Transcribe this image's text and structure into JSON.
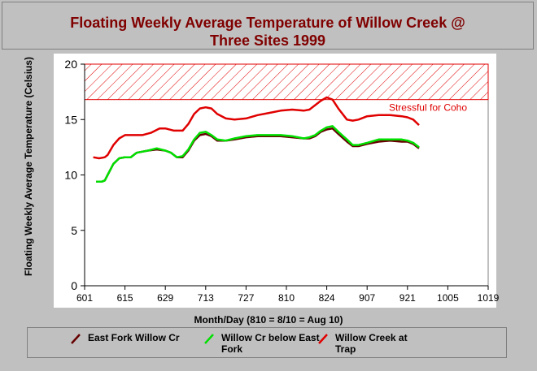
{
  "title_line1": "Floating Weekly Average Temperature of Willow Creek @",
  "title_line2": "Three Sites 1999",
  "colors": {
    "series1": "#660000",
    "series2": "#00e000",
    "series3": "#e00000",
    "hatch": "#e00000",
    "title": "#800000"
  },
  "chart_data": {
    "type": "line",
    "title": "Floating Weekly Average Temperature of Willow Creek @ Three Sites 1999",
    "xlabel": "Month/Day (810 = 8/10 = Aug 10)",
    "ylabel": "Floating Weekly Average Temperature (Celsius)",
    "x_ticks": [
      "601",
      "615",
      "629",
      "713",
      "727",
      "810",
      "824",
      "907",
      "921",
      "1005",
      "1019"
    ],
    "xlim": [
      "06-01",
      "10-19"
    ],
    "ylim": [
      0,
      20
    ],
    "y_ticks": [
      0,
      5,
      10,
      15,
      20
    ],
    "grid": false,
    "threshold": {
      "label": "Stressful for Coho",
      "from": 16.8,
      "to": 20
    },
    "series": [
      {
        "name": "East Fork Willow Cr",
        "color": "#660000",
        "points": [
          [
            "06-05",
            9.4
          ],
          [
            "06-07",
            9.4
          ],
          [
            "06-08",
            9.5
          ],
          [
            "06-09",
            10.0
          ],
          [
            "06-11",
            11.0
          ],
          [
            "06-13",
            11.5
          ],
          [
            "06-15",
            11.6
          ],
          [
            "06-17",
            11.6
          ],
          [
            "06-19",
            12.0
          ],
          [
            "06-21",
            12.1
          ],
          [
            "06-23",
            12.2
          ],
          [
            "06-26",
            12.3
          ],
          [
            "06-29",
            12.2
          ],
          [
            "07-01",
            12.0
          ],
          [
            "07-03",
            11.6
          ],
          [
            "07-05",
            11.6
          ],
          [
            "07-07",
            12.2
          ],
          [
            "07-09",
            13.1
          ],
          [
            "07-11",
            13.6
          ],
          [
            "07-13",
            13.7
          ],
          [
            "07-15",
            13.5
          ],
          [
            "07-17",
            13.1
          ],
          [
            "07-20",
            13.1
          ],
          [
            "07-23",
            13.2
          ],
          [
            "07-27",
            13.4
          ],
          [
            "07-31",
            13.5
          ],
          [
            "08-04",
            13.5
          ],
          [
            "08-08",
            13.5
          ],
          [
            "08-12",
            13.4
          ],
          [
            "08-16",
            13.3
          ],
          [
            "08-18",
            13.3
          ],
          [
            "08-20",
            13.5
          ],
          [
            "08-22",
            13.9
          ],
          [
            "08-24",
            14.1
          ],
          [
            "08-26",
            14.2
          ],
          [
            "08-28",
            13.7
          ],
          [
            "08-31",
            13.0
          ],
          [
            "09-02",
            12.6
          ],
          [
            "09-04",
            12.6
          ],
          [
            "09-07",
            12.8
          ],
          [
            "09-11",
            13.0
          ],
          [
            "09-15",
            13.1
          ],
          [
            "09-19",
            13.0
          ],
          [
            "09-21",
            13.0
          ],
          [
            "09-23",
            12.8
          ],
          [
            "09-25",
            12.4
          ]
        ]
      },
      {
        "name": "Willow Cr below East Fork",
        "color": "#00e000",
        "points": [
          [
            "06-05",
            9.4
          ],
          [
            "06-07",
            9.4
          ],
          [
            "06-08",
            9.5
          ],
          [
            "06-09",
            10.0
          ],
          [
            "06-11",
            11.0
          ],
          [
            "06-13",
            11.5
          ],
          [
            "06-15",
            11.6
          ],
          [
            "06-17",
            11.6
          ],
          [
            "06-19",
            12.0
          ],
          [
            "06-21",
            12.1
          ],
          [
            "06-23",
            12.2
          ],
          [
            "06-26",
            12.4
          ],
          [
            "06-29",
            12.2
          ],
          [
            "07-01",
            12.0
          ],
          [
            "07-03",
            11.6
          ],
          [
            "07-05",
            11.7
          ],
          [
            "07-07",
            12.3
          ],
          [
            "07-09",
            13.2
          ],
          [
            "07-11",
            13.8
          ],
          [
            "07-13",
            13.9
          ],
          [
            "07-15",
            13.6
          ],
          [
            "07-17",
            13.2
          ],
          [
            "07-20",
            13.1
          ],
          [
            "07-23",
            13.3
          ],
          [
            "07-27",
            13.5
          ],
          [
            "07-31",
            13.6
          ],
          [
            "08-04",
            13.6
          ],
          [
            "08-08",
            13.6
          ],
          [
            "08-12",
            13.5
          ],
          [
            "08-16",
            13.3
          ],
          [
            "08-18",
            13.4
          ],
          [
            "08-20",
            13.6
          ],
          [
            "08-22",
            14.0
          ],
          [
            "08-24",
            14.3
          ],
          [
            "08-26",
            14.4
          ],
          [
            "08-28",
            13.9
          ],
          [
            "08-31",
            13.2
          ],
          [
            "09-02",
            12.7
          ],
          [
            "09-04",
            12.7
          ],
          [
            "09-07",
            12.9
          ],
          [
            "09-11",
            13.2
          ],
          [
            "09-15",
            13.2
          ],
          [
            "09-19",
            13.2
          ],
          [
            "09-21",
            13.1
          ],
          [
            "09-23",
            12.9
          ],
          [
            "09-25",
            12.5
          ]
        ]
      },
      {
        "name": "Willow Creek at Trap",
        "color": "#e00000",
        "points": [
          [
            "06-04",
            11.6
          ],
          [
            "06-06",
            11.5
          ],
          [
            "06-08",
            11.6
          ],
          [
            "06-09",
            11.8
          ],
          [
            "06-11",
            12.7
          ],
          [
            "06-13",
            13.3
          ],
          [
            "06-15",
            13.6
          ],
          [
            "06-17",
            13.6
          ],
          [
            "06-21",
            13.6
          ],
          [
            "06-24",
            13.8
          ],
          [
            "06-27",
            14.2
          ],
          [
            "06-29",
            14.2
          ],
          [
            "07-02",
            14.0
          ],
          [
            "07-05",
            14.0
          ],
          [
            "07-07",
            14.6
          ],
          [
            "07-09",
            15.5
          ],
          [
            "07-11",
            16.0
          ],
          [
            "07-13",
            16.1
          ],
          [
            "07-15",
            16.0
          ],
          [
            "07-17",
            15.5
          ],
          [
            "07-20",
            15.1
          ],
          [
            "07-23",
            15.0
          ],
          [
            "07-27",
            15.1
          ],
          [
            "07-31",
            15.4
          ],
          [
            "08-04",
            15.6
          ],
          [
            "08-08",
            15.8
          ],
          [
            "08-12",
            15.9
          ],
          [
            "08-16",
            15.8
          ],
          [
            "08-18",
            15.9
          ],
          [
            "08-20",
            16.3
          ],
          [
            "08-22",
            16.7
          ],
          [
            "08-24",
            17.0
          ],
          [
            "08-26",
            16.8
          ],
          [
            "08-28",
            16.0
          ],
          [
            "08-31",
            15.0
          ],
          [
            "09-02",
            14.9
          ],
          [
            "09-04",
            15.0
          ],
          [
            "09-07",
            15.3
          ],
          [
            "09-11",
            15.4
          ],
          [
            "09-15",
            15.4
          ],
          [
            "09-19",
            15.3
          ],
          [
            "09-21",
            15.2
          ],
          [
            "09-23",
            15.0
          ],
          [
            "09-25",
            14.5
          ]
        ]
      }
    ],
    "legend_position": "bottom"
  }
}
